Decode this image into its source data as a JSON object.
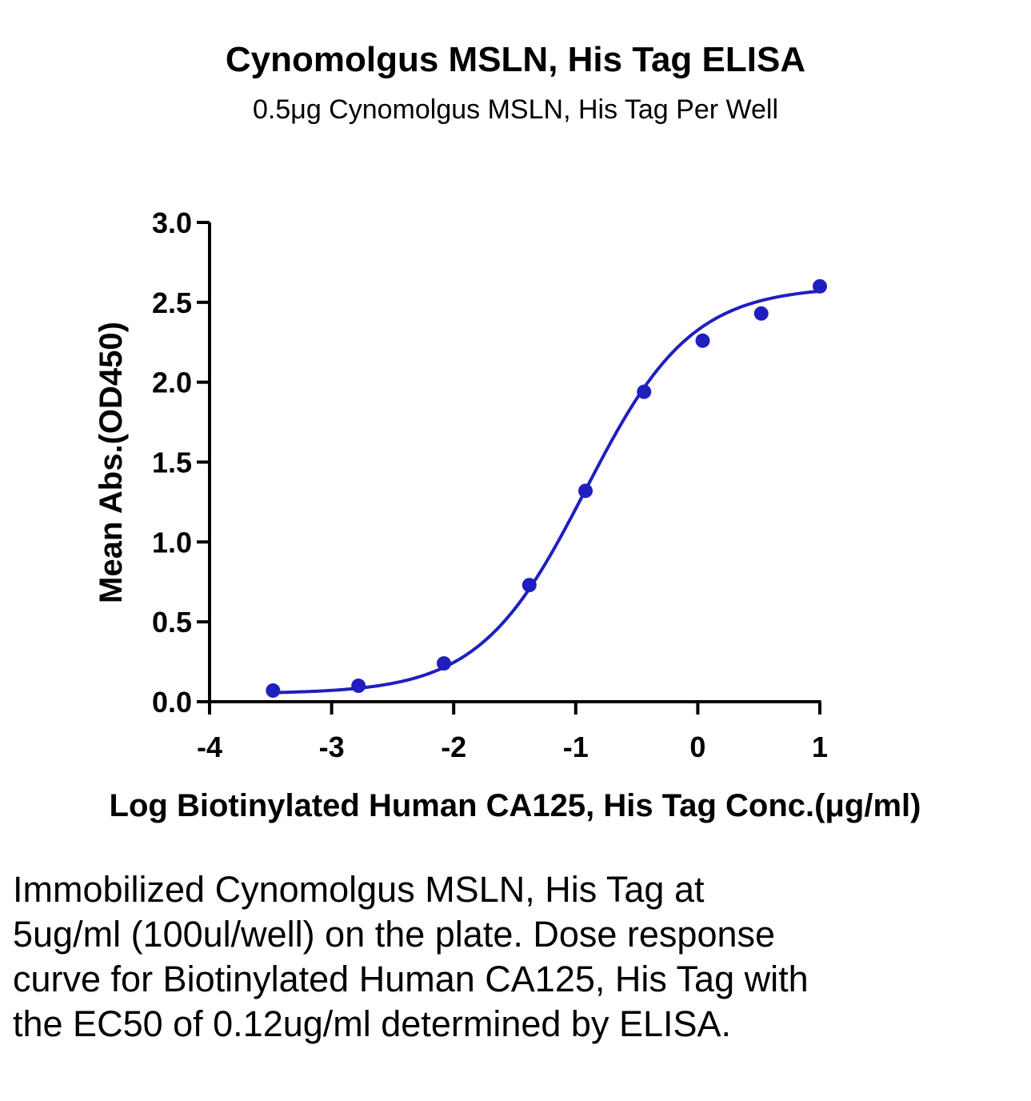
{
  "title": "Cynomolgus MSLN, His Tag ELISA",
  "subtitle": "0.5μg Cynomolgus MSLN, His Tag Per Well",
  "caption": "Immobilized Cynomolgus MSLN, His Tag at 5ug/ml (100ul/well) on the plate. Dose response curve for Biotinylated Human CA125, His Tag with the EC50 of 0.12ug/ml determined by ELISA.",
  "colors": {
    "series": "#1f1fbf",
    "axis": "#000000"
  },
  "chart_data": {
    "type": "scatter",
    "xlabel": "Log Biotinylated Human CA125, His Tag Conc.(μg/ml)",
    "ylabel": "Mean Abs.(OD450)",
    "xlim": [
      -4,
      1
    ],
    "ylim": [
      0,
      3
    ],
    "x_ticks": [
      "-4",
      "-3",
      "-2",
      "-1",
      "0",
      "1"
    ],
    "y_ticks": [
      "0.0",
      "0.5",
      "1.0",
      "1.5",
      "2.0",
      "2.5",
      "3.0"
    ],
    "grid": false,
    "series": [
      {
        "x": [
          -3.48,
          -2.78,
          -2.08,
          -1.38,
          -0.92,
          -0.44,
          0.04,
          0.52,
          1.0
        ],
        "y": [
          0.07,
          0.1,
          0.24,
          0.73,
          1.32,
          1.94,
          2.26,
          2.43,
          2.6
        ]
      }
    ],
    "fit_curve": {
      "model": "4PL",
      "bottom": 0.05,
      "top": 2.6,
      "log_ec50": -0.92,
      "hill": 1.0
    }
  }
}
